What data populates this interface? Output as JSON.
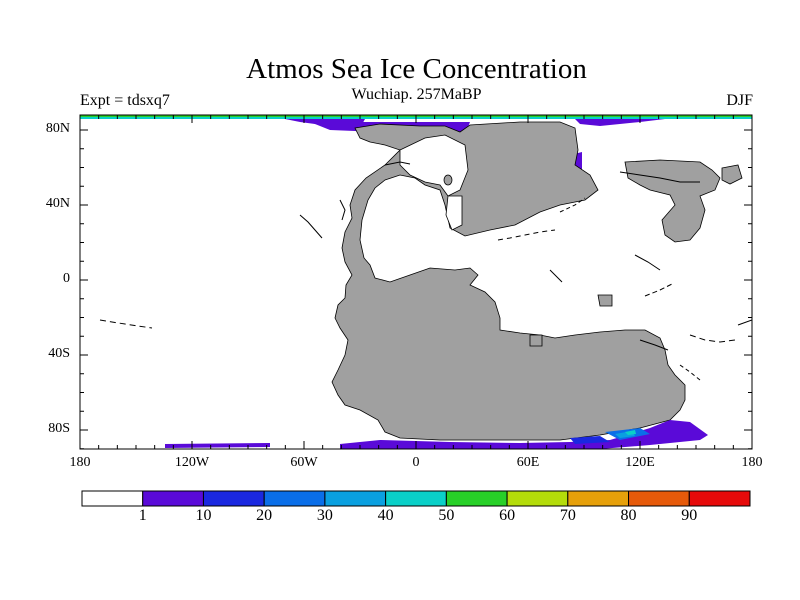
{
  "title": "Atmos Sea Ice Concentration",
  "subtitle": "Wuchiap. 257MaBP",
  "left_label": "Expt = tdsxq7",
  "right_label": "DJF",
  "lat_labels": [
    "80N",
    "40N",
    "0",
    "40S",
    "80S"
  ],
  "lon_labels": [
    "180",
    "120W",
    "60W",
    "0",
    "60E",
    "120E",
    "180"
  ],
  "colorbar": {
    "labels": [
      "1",
      "10",
      "20",
      "30",
      "40",
      "50",
      "60",
      "70",
      "80",
      "90"
    ],
    "colors": [
      "#ffffff",
      "#5a0ad8",
      "#1a28e0",
      "#0a6ee8",
      "#0aa0e0",
      "#0ad0c8",
      "#28d028",
      "#b4dc0a",
      "#e6a00a",
      "#e65a0a",
      "#e60a0a"
    ]
  },
  "colors": {
    "land": "#a0a0a0",
    "ocean": "#ffffff"
  }
}
